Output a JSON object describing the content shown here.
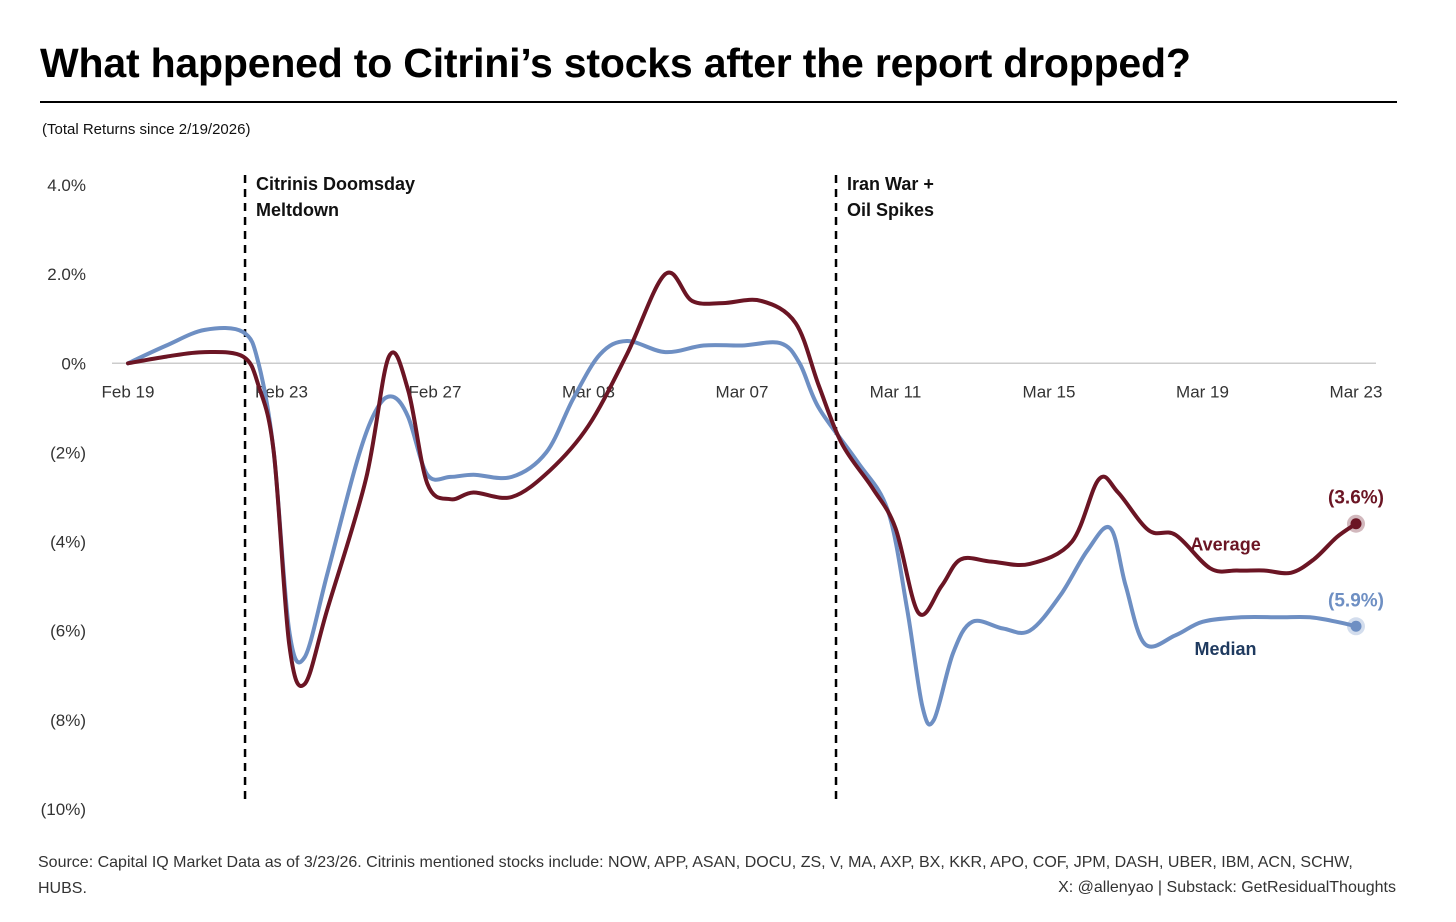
{
  "title": "What happened to Citrini’s stocks after the report dropped?",
  "subtitle": "(Total Returns since 2/19/2026)",
  "footer": {
    "source": "Source: Capital IQ Market Data as of 3/23/26. Citrinis mentioned stocks include: NOW, APP, ASAN, DOCU, ZS, V, MA, AXP, BX, KKR, APO, COF, JPM, DASH, UBER, IBM, ACN, SCHW, HUBS.",
    "credit": "X: @allenyao | Substack: GetResidualThoughts"
  },
  "colors": {
    "average": "#6B1524",
    "median": "#6E8FC3",
    "median_label": "#1F3A5F",
    "axis": "#cccccc",
    "text": "#333333"
  },
  "chart_data": {
    "type": "line",
    "title": "What happened to Citrini’s stocks after the report dropped?",
    "subtitle": "(Total Returns since 2/19/2026)",
    "xlabel": "",
    "ylabel": "",
    "x_range": [
      0,
      32
    ],
    "ylim": [
      -10,
      4
    ],
    "grid": false,
    "x_ticks": [
      {
        "x": 0,
        "label": "Feb 19"
      },
      {
        "x": 4,
        "label": "Feb 23"
      },
      {
        "x": 8,
        "label": "Feb 27"
      },
      {
        "x": 12,
        "label": "Mar 03"
      },
      {
        "x": 16,
        "label": "Mar 07"
      },
      {
        "x": 20,
        "label": "Mar 11"
      },
      {
        "x": 24,
        "label": "Mar 15"
      },
      {
        "x": 28,
        "label": "Mar 19"
      },
      {
        "x": 32,
        "label": "Mar 23"
      }
    ],
    "y_ticks": [
      {
        "value": 4,
        "label": "4.0%"
      },
      {
        "value": 2,
        "label": "2.0%"
      },
      {
        "value": 0,
        "label": "0%"
      },
      {
        "value": -2,
        "label": "(2%)"
      },
      {
        "value": -4,
        "label": "(4%)"
      },
      {
        "value": -6,
        "label": "(6%)"
      },
      {
        "value": -8,
        "label": "(8%)"
      },
      {
        "value": -10,
        "label": "(10%)"
      }
    ],
    "series": [
      {
        "name": "Average",
        "end_label": "(3.6%)",
        "points": [
          [
            0,
            0
          ],
          [
            1,
            0.15
          ],
          [
            2,
            0.25
          ],
          [
            3,
            0.15
          ],
          [
            3.4,
            -0.5
          ],
          [
            3.8,
            -2.0
          ],
          [
            4.2,
            -6.3
          ],
          [
            4.6,
            -7.2
          ],
          [
            5.2,
            -5.5
          ],
          [
            6.2,
            -2.6
          ],
          [
            6.8,
            0.15
          ],
          [
            7.3,
            -0.6
          ],
          [
            7.8,
            -2.7
          ],
          [
            8.4,
            -3.05
          ],
          [
            9.0,
            -2.9
          ],
          [
            10.0,
            -3.0
          ],
          [
            11.0,
            -2.4
          ],
          [
            12.0,
            -1.4
          ],
          [
            13.0,
            0.2
          ],
          [
            14.0,
            2.0
          ],
          [
            14.7,
            1.4
          ],
          [
            15.5,
            1.35
          ],
          [
            16.5,
            1.4
          ],
          [
            17.4,
            0.9
          ],
          [
            18.0,
            -0.5
          ],
          [
            18.6,
            -1.8
          ],
          [
            19.4,
            -2.8
          ],
          [
            20.0,
            -3.7
          ],
          [
            20.6,
            -5.6
          ],
          [
            21.2,
            -5.0
          ],
          [
            21.7,
            -4.4
          ],
          [
            22.5,
            -4.45
          ],
          [
            23.5,
            -4.5
          ],
          [
            24.6,
            -4.0
          ],
          [
            25.3,
            -2.6
          ],
          [
            25.8,
            -2.9
          ],
          [
            26.6,
            -3.75
          ],
          [
            27.3,
            -3.85
          ],
          [
            28.2,
            -4.6
          ],
          [
            28.9,
            -4.65
          ],
          [
            29.6,
            -4.65
          ],
          [
            30.3,
            -4.7
          ],
          [
            30.9,
            -4.4
          ],
          [
            31.5,
            -3.9
          ],
          [
            32.0,
            -3.6
          ]
        ]
      },
      {
        "name": "Median",
        "end_label": "(5.9%)",
        "points": [
          [
            0,
            0
          ],
          [
            1,
            0.4
          ],
          [
            2,
            0.75
          ],
          [
            3,
            0.7
          ],
          [
            3.4,
            0.0
          ],
          [
            3.8,
            -2.0
          ],
          [
            4.2,
            -6.0
          ],
          [
            4.6,
            -6.6
          ],
          [
            5.2,
            -4.7
          ],
          [
            6.0,
            -2.1
          ],
          [
            6.5,
            -1.0
          ],
          [
            6.9,
            -0.75
          ],
          [
            7.3,
            -1.2
          ],
          [
            7.8,
            -2.5
          ],
          [
            8.4,
            -2.55
          ],
          [
            9.0,
            -2.5
          ],
          [
            10.0,
            -2.55
          ],
          [
            10.9,
            -2.0
          ],
          [
            11.6,
            -0.8
          ],
          [
            12.3,
            0.2
          ],
          [
            13.0,
            0.5
          ],
          [
            14.0,
            0.25
          ],
          [
            15.0,
            0.4
          ],
          [
            16.0,
            0.4
          ],
          [
            17.0,
            0.45
          ],
          [
            17.5,
            0.0
          ],
          [
            18.0,
            -1.0
          ],
          [
            19.0,
            -2.2
          ],
          [
            19.8,
            -3.3
          ],
          [
            20.3,
            -5.5
          ],
          [
            20.7,
            -7.7
          ],
          [
            21.0,
            -8.0
          ],
          [
            21.5,
            -6.5
          ],
          [
            22.0,
            -5.8
          ],
          [
            22.8,
            -5.95
          ],
          [
            23.5,
            -6.0
          ],
          [
            24.3,
            -5.2
          ],
          [
            25.0,
            -4.2
          ],
          [
            25.6,
            -3.7
          ],
          [
            26.0,
            -5.0
          ],
          [
            26.5,
            -6.3
          ],
          [
            27.3,
            -6.1
          ],
          [
            28.0,
            -5.8
          ],
          [
            29.0,
            -5.7
          ],
          [
            30.0,
            -5.7
          ],
          [
            30.8,
            -5.7
          ],
          [
            31.5,
            -5.8
          ],
          [
            32.0,
            -5.9
          ]
        ]
      }
    ],
    "annotations": [
      {
        "x": 3.05,
        "line1": "Citrinis Doomsday",
        "line2": "Meltdown"
      },
      {
        "x": 18.45,
        "line1": "Iran War +",
        "line2": "Oil Spikes"
      }
    ],
    "series_labels": [
      {
        "series": "Average",
        "text": "Average",
        "anchor_x": 28.6,
        "anchor_y": -4.2
      },
      {
        "series": "Median",
        "text": "Median",
        "anchor_x": 28.6,
        "anchor_y": -6.55
      }
    ],
    "legend": "none"
  }
}
